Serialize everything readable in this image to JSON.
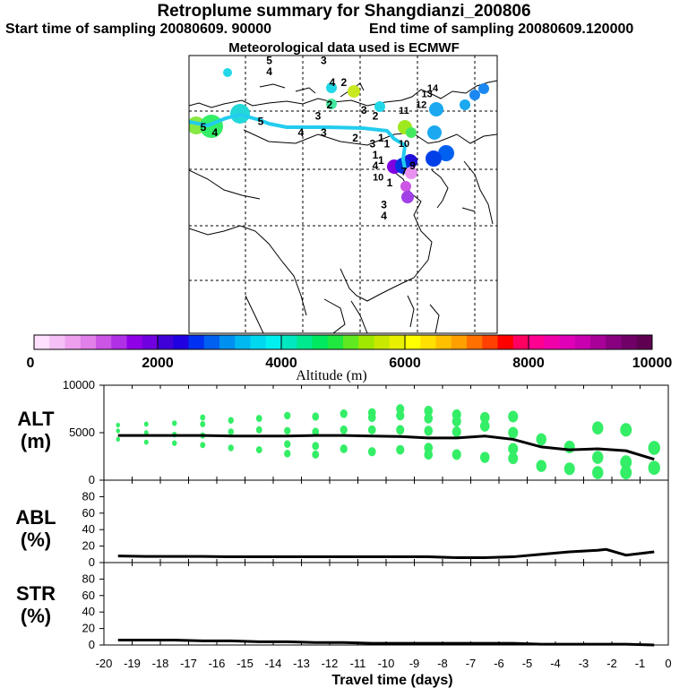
{
  "title": "Retroplume summary for Shangdianzi_200806",
  "start_label": "Start time of sampling 20080609. 90000",
  "end_label": "End time of sampling 20080609.120000",
  "met_label": "Meteorological data used is ECMWF",
  "colors": {
    "trajectory": "#22ccee",
    "scatter": "#33ee66",
    "line": "#000000"
  },
  "map": {
    "labels": [
      {
        "t": "5",
        "lat": 71,
        "lon": 73
      },
      {
        "t": "4",
        "lat": 69,
        "lon": 73
      },
      {
        "t": "3",
        "lat": 71,
        "lon": 92
      },
      {
        "t": "4",
        "lat": 67,
        "lon": 95
      },
      {
        "t": "2",
        "lat": 67,
        "lon": 99
      },
      {
        "t": "2",
        "lat": 63,
        "lon": 94
      },
      {
        "t": "3",
        "lat": 61,
        "lon": 90
      },
      {
        "t": "3",
        "lat": 62,
        "lon": 106
      },
      {
        "t": "2",
        "lat": 61,
        "lon": 110
      },
      {
        "t": "11",
        "lat": 62,
        "lon": 120
      },
      {
        "t": "12",
        "lat": 63,
        "lon": 126
      },
      {
        "t": "13",
        "lat": 65,
        "lon": 128
      },
      {
        "t": "14",
        "lat": 66,
        "lon": 130
      },
      {
        "t": "10",
        "lat": 56,
        "lon": 120
      },
      {
        "t": "7",
        "lat": 51,
        "lon": 120
      },
      {
        "t": "9",
        "lat": 52,
        "lon": 123
      },
      {
        "t": "1",
        "lat": 57,
        "lon": 112
      },
      {
        "t": "1",
        "lat": 56,
        "lon": 114
      },
      {
        "t": "3",
        "lat": 56,
        "lon": 109
      },
      {
        "t": "1",
        "lat": 53,
        "lon": 112
      },
      {
        "t": "4",
        "lat": 52,
        "lon": 110
      },
      {
        "t": "10",
        "lat": 50,
        "lon": 111
      },
      {
        "t": "1",
        "lat": 49,
        "lon": 115
      },
      {
        "t": "3",
        "lat": 45,
        "lon": 113
      },
      {
        "t": "4",
        "lat": 43,
        "lon": 113
      },
      {
        "t": "5",
        "lat": 59,
        "lon": 50
      },
      {
        "t": "4",
        "lat": 58,
        "lon": 54
      },
      {
        "t": "5",
        "lat": 60,
        "lon": 70
      },
      {
        "t": "4",
        "lat": 58,
        "lon": 84
      },
      {
        "t": "3",
        "lat": 58,
        "lon": 92
      },
      {
        "t": "2",
        "lat": 57,
        "lon": 103
      },
      {
        "t": "1",
        "lat": 54,
        "lon": 110
      }
    ]
  },
  "chart_data": [
    {
      "type": "colorbar",
      "title": "Altitude (m)",
      "range": [
        0,
        10000
      ],
      "tick_labels": [
        "0",
        "2000",
        "4000",
        "6000",
        "8000",
        "10000"
      ],
      "colors": [
        "#ffe0ff",
        "#f5c0f5",
        "#eea0ee",
        "#e080e8",
        "#cc55e6",
        "#b030e6",
        "#9000e6",
        "#7000e0",
        "#4000d8",
        "#2000e0",
        "#0030f0",
        "#0060f0",
        "#0090f0",
        "#00b8f0",
        "#00d8f0",
        "#00f0f0",
        "#00e8c0",
        "#00e890",
        "#00e860",
        "#20e840",
        "#60e820",
        "#a0e800",
        "#c8e800",
        "#e8f000",
        "#ffff00",
        "#ffe000",
        "#ffc000",
        "#ffa000",
        "#ff7000",
        "#ff4000",
        "#ff0000",
        "#ff0060",
        "#ff0090",
        "#f000a8",
        "#e000b8",
        "#c800b0",
        "#a80098",
        "#880080",
        "#700068",
        "#600050"
      ]
    },
    {
      "type": "scatter+line",
      "panel": "ALT",
      "ylabel": "ALT (m)",
      "ylim": [
        0,
        10000
      ],
      "y_tick_labels": [
        "10000",
        "5000",
        "0"
      ],
      "x": [
        -19.5,
        -18.5,
        -17.5,
        -16.5,
        -15.5,
        -14.5,
        -13.5,
        -12.5,
        -11.5,
        -10.5,
        -9.5,
        -8.5,
        -7.5,
        -6.5,
        -5.5,
        -4.5,
        -3.5,
        -2.5,
        -1.5,
        -0.5
      ],
      "line": [
        4700,
        4700,
        4700,
        4700,
        4650,
        4650,
        4650,
        4700,
        4700,
        4650,
        4600,
        4450,
        4450,
        4650,
        4300,
        3500,
        3200,
        3300,
        3100,
        2200
      ],
      "points": [
        {
          "x": -19.5,
          "y": 5800
        },
        {
          "x": -19.5,
          "y": 5200
        },
        {
          "x": -19.5,
          "y": 4300
        },
        {
          "x": -18.5,
          "y": 5900
        },
        {
          "x": -18.5,
          "y": 5000
        },
        {
          "x": -18.5,
          "y": 4000
        },
        {
          "x": -17.5,
          "y": 6000
        },
        {
          "x": -17.5,
          "y": 4800
        },
        {
          "x": -17.5,
          "y": 3900
        },
        {
          "x": -16.5,
          "y": 6600
        },
        {
          "x": -16.5,
          "y": 5900
        },
        {
          "x": -16.5,
          "y": 4700
        },
        {
          "x": -16.5,
          "y": 3700
        },
        {
          "x": -15.5,
          "y": 6300
        },
        {
          "x": -15.5,
          "y": 5100
        },
        {
          "x": -15.5,
          "y": 3400
        },
        {
          "x": -14.5,
          "y": 6500
        },
        {
          "x": -14.5,
          "y": 5300
        },
        {
          "x": -14.5,
          "y": 3200
        },
        {
          "x": -13.5,
          "y": 6800
        },
        {
          "x": -13.5,
          "y": 5200
        },
        {
          "x": -13.5,
          "y": 3800
        },
        {
          "x": -13.5,
          "y": 2800
        },
        {
          "x": -12.5,
          "y": 6700
        },
        {
          "x": -12.5,
          "y": 5100
        },
        {
          "x": -12.5,
          "y": 3600
        },
        {
          "x": -12.5,
          "y": 2700
        },
        {
          "x": -11.5,
          "y": 7000
        },
        {
          "x": -11.5,
          "y": 5300
        },
        {
          "x": -11.5,
          "y": 3300
        },
        {
          "x": -10.5,
          "y": 7100
        },
        {
          "x": -10.5,
          "y": 6600
        },
        {
          "x": -10.5,
          "y": 5300
        },
        {
          "x": -10.5,
          "y": 3000
        },
        {
          "x": -9.5,
          "y": 7500
        },
        {
          "x": -9.5,
          "y": 6800
        },
        {
          "x": -9.5,
          "y": 5300
        },
        {
          "x": -9.5,
          "y": 3200
        },
        {
          "x": -8.5,
          "y": 7300
        },
        {
          "x": -8.5,
          "y": 6500
        },
        {
          "x": -8.5,
          "y": 5200
        },
        {
          "x": -8.5,
          "y": 3400
        },
        {
          "x": -8.5,
          "y": 2700
        },
        {
          "x": -7.5,
          "y": 6900
        },
        {
          "x": -7.5,
          "y": 6200
        },
        {
          "x": -7.5,
          "y": 5100
        },
        {
          "x": -7.5,
          "y": 2700
        },
        {
          "x": -6.5,
          "y": 6600
        },
        {
          "x": -6.5,
          "y": 5700
        },
        {
          "x": -6.5,
          "y": 2400
        },
        {
          "x": -5.5,
          "y": 6700
        },
        {
          "x": -5.5,
          "y": 5000
        },
        {
          "x": -5.5,
          "y": 3300
        },
        {
          "x": -5.5,
          "y": 2300
        },
        {
          "x": -4.5,
          "y": 4300
        },
        {
          "x": -4.5,
          "y": 1500
        },
        {
          "x": -3.5,
          "y": 3500
        },
        {
          "x": -3.5,
          "y": 1200
        },
        {
          "x": -2.5,
          "y": 5500
        },
        {
          "x": -2.5,
          "y": 2400
        },
        {
          "x": -2.5,
          "y": 800
        },
        {
          "x": -1.5,
          "y": 5300
        },
        {
          "x": -1.5,
          "y": 1900
        },
        {
          "x": -1.5,
          "y": 800
        },
        {
          "x": -0.5,
          "y": 3400
        },
        {
          "x": -0.5,
          "y": 1300
        }
      ]
    },
    {
      "type": "line",
      "panel": "ABL",
      "ylabel": "ABL (%)",
      "ylim": [
        0,
        100
      ],
      "y_tick_labels": [
        "80",
        "60",
        "40",
        "20",
        "0"
      ],
      "x": [
        -19.5,
        -18.5,
        -17.5,
        -16.5,
        -15.5,
        -14.5,
        -13.5,
        -12.5,
        -11.5,
        -10.5,
        -9.5,
        -8.5,
        -7.5,
        -6.5,
        -5.5,
        -4.5,
        -3.5,
        -2.5,
        -2.2,
        -1.5,
        -0.5
      ],
      "y": [
        8,
        7.5,
        7.5,
        7.5,
        7,
        7,
        7,
        7,
        7,
        7,
        7,
        7,
        6,
        6,
        7,
        10,
        13,
        15,
        16,
        9,
        13
      ]
    },
    {
      "type": "line",
      "panel": "STR",
      "ylabel": "STR (%)",
      "ylim": [
        0,
        100
      ],
      "y_tick_labels": [
        "80",
        "60",
        "40",
        "20",
        "0"
      ],
      "x": [
        -19.5,
        -18.5,
        -17.5,
        -16.5,
        -15.5,
        -14.5,
        -13.5,
        -12.5,
        -11.5,
        -10.5,
        -9.5,
        -8.5,
        -7.5,
        -6.5,
        -5.5,
        -4.5,
        -3.5,
        -2.5,
        -1.5,
        -0.5
      ],
      "y": [
        6,
        6,
        6,
        5,
        5,
        4,
        4,
        3,
        3,
        2,
        2,
        2,
        2,
        2,
        2,
        1,
        1,
        1,
        1,
        0
      ],
      "xlabel": "Travel time (days)",
      "xlim": [
        -20,
        0
      ],
      "x_tick_labels": [
        "-20",
        "-19",
        "-18",
        "-17",
        "-16",
        "-15",
        "-14",
        "-13",
        "-12",
        "-11",
        "-10",
        "-9",
        "-8",
        "-7",
        "-6",
        "-5",
        "-4",
        "-3",
        "-2",
        "-1",
        "0"
      ]
    }
  ]
}
